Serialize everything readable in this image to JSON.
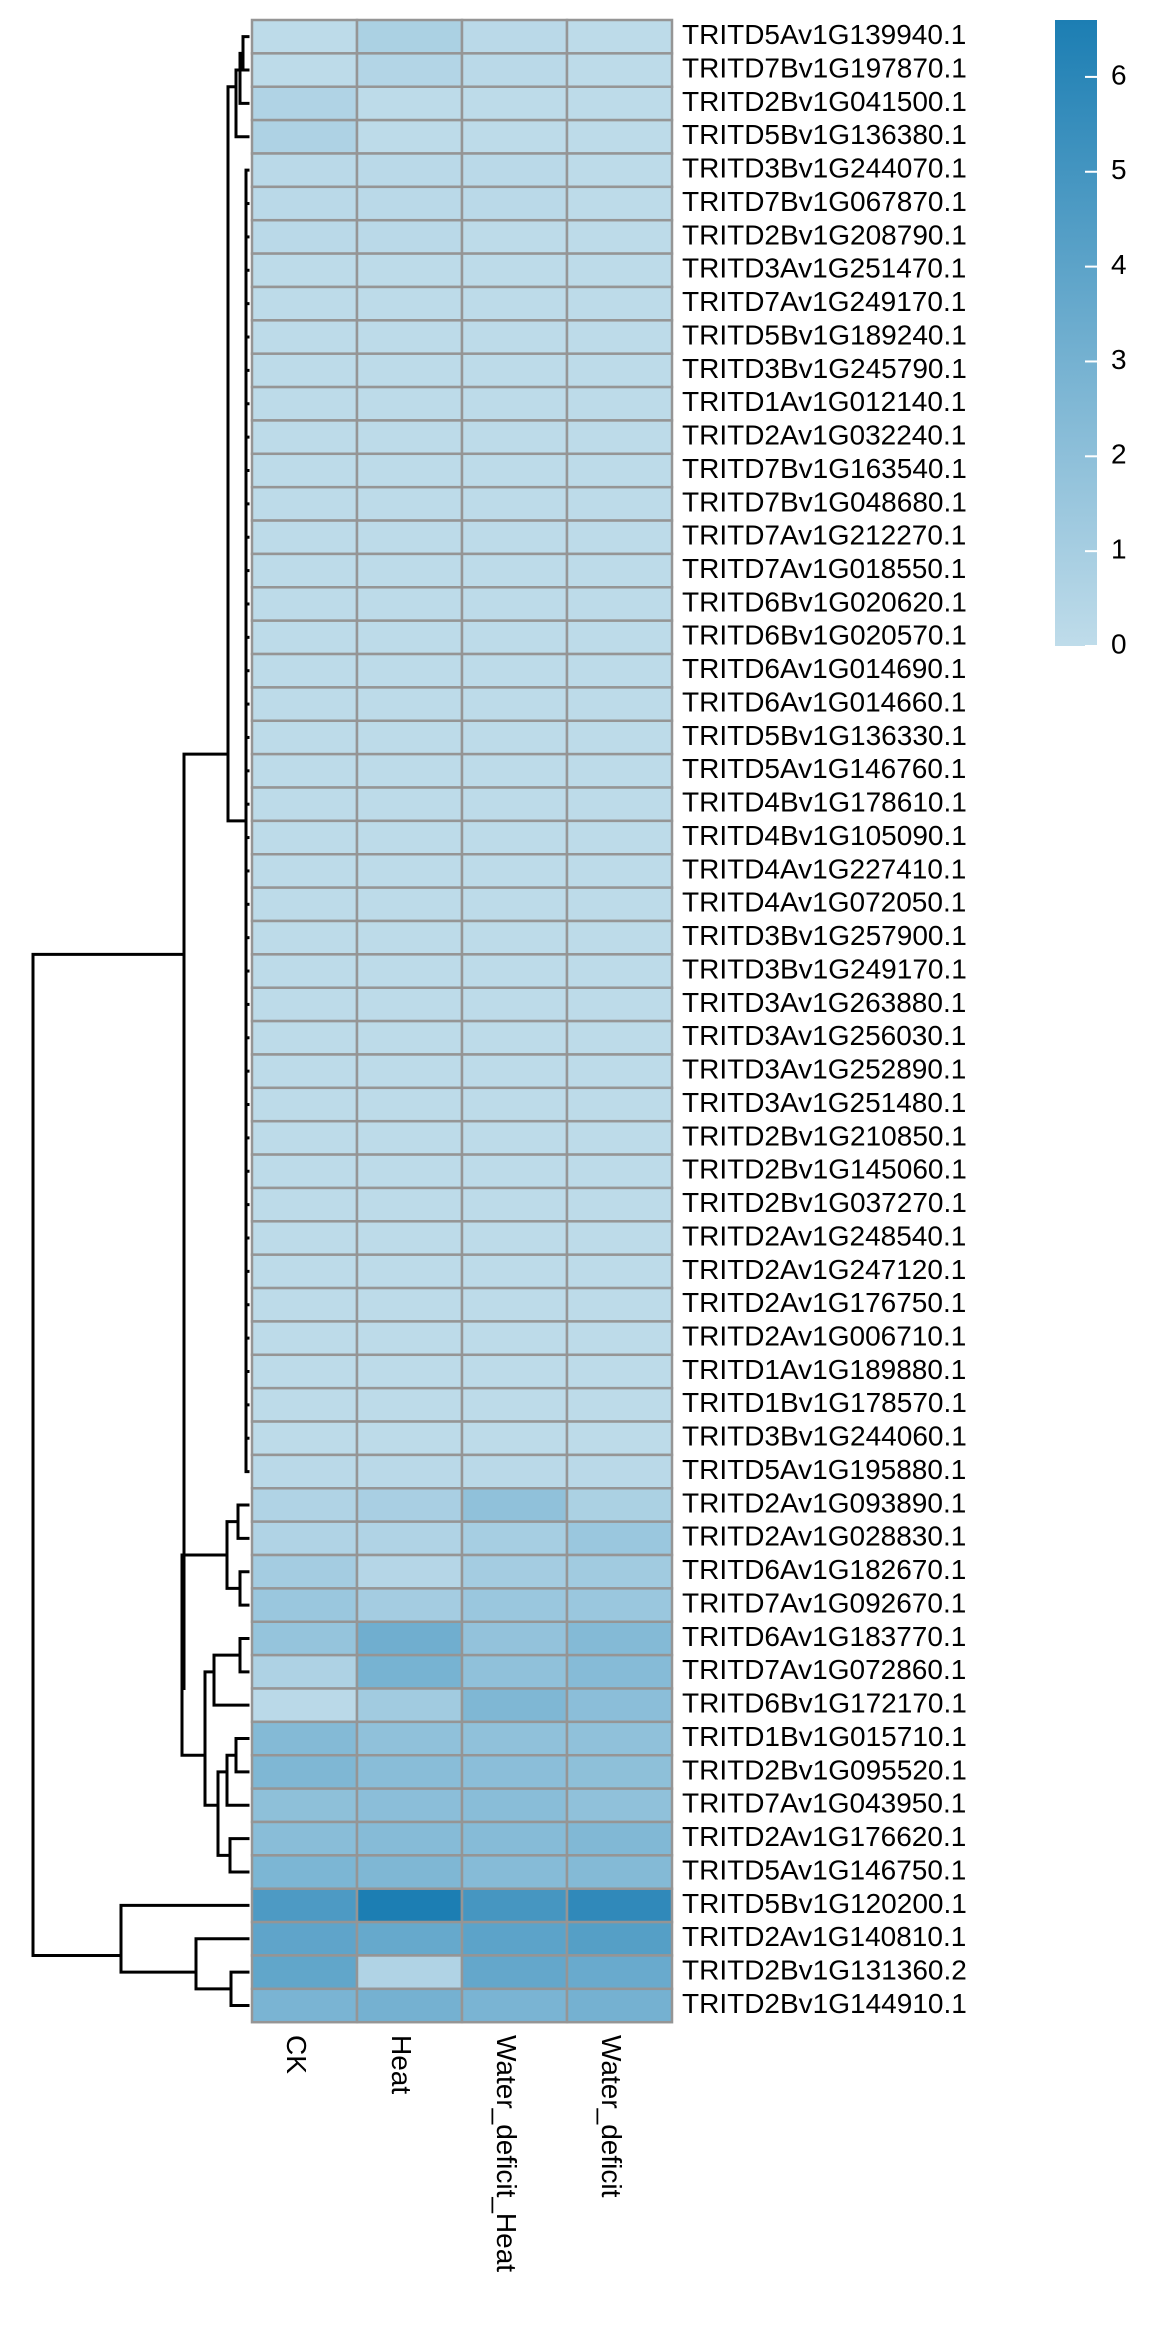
{
  "chart_data": {
    "type": "heatmap",
    "title": "",
    "columns": [
      "CK",
      "Heat",
      "Water_deficit_Heat",
      "Water_deficit"
    ],
    "rows": [
      "TRITD5Av1G139940.1",
      "TRITD7Bv1G197870.1",
      "TRITD2Bv1G041500.1",
      "TRITD5Bv1G136380.1",
      "TRITD3Bv1G244070.1",
      "TRITD7Bv1G067870.1",
      "TRITD2Bv1G208790.1",
      "TRITD3Av1G251470.1",
      "TRITD7Av1G249170.1",
      "TRITD5Bv1G189240.1",
      "TRITD3Bv1G245790.1",
      "TRITD1Av1G012140.1",
      "TRITD2Av1G032240.1",
      "TRITD7Bv1G163540.1",
      "TRITD7Bv1G048680.1",
      "TRITD7Av1G212270.1",
      "TRITD7Av1G018550.1",
      "TRITD6Bv1G020620.1",
      "TRITD6Bv1G020570.1",
      "TRITD6Av1G014690.1",
      "TRITD6Av1G014660.1",
      "TRITD5Bv1G136330.1",
      "TRITD5Av1G146760.1",
      "TRITD4Bv1G178610.1",
      "TRITD4Bv1G105090.1",
      "TRITD4Av1G227410.1",
      "TRITD4Av1G072050.1",
      "TRITD3Bv1G257900.1",
      "TRITD3Bv1G249170.1",
      "TRITD3Av1G263880.1",
      "TRITD3Av1G256030.1",
      "TRITD3Av1G252890.1",
      "TRITD3Av1G251480.1",
      "TRITD2Bv1G210850.1",
      "TRITD2Bv1G145060.1",
      "TRITD2Bv1G037270.1",
      "TRITD2Av1G248540.1",
      "TRITD2Av1G247120.1",
      "TRITD2Av1G176750.1",
      "TRITD2Av1G006710.1",
      "TRITD1Av1G189880.1",
      "TRITD1Bv1G178570.1",
      "TRITD3Bv1G244060.1",
      "TRITD5Av1G195880.1",
      "TRITD2Av1G093890.1",
      "TRITD2Av1G028830.1",
      "TRITD6Av1G182670.1",
      "TRITD7Av1G092670.1",
      "TRITD6Av1G183770.1",
      "TRITD7Av1G072860.1",
      "TRITD6Bv1G172170.1",
      "TRITD1Bv1G015710.1",
      "TRITD2Bv1G095520.1",
      "TRITD7Av1G043950.1",
      "TRITD2Av1G176620.1",
      "TRITD5Av1G146750.1",
      "TRITD5Bv1G120200.1",
      "TRITD2Av1G140810.1",
      "TRITD2Bv1G131360.2",
      "TRITD2Bv1G144910.1"
    ],
    "values": [
      [
        0.1,
        0.8,
        0.2,
        0.1
      ],
      [
        0.1,
        0.5,
        0.2,
        0.1
      ],
      [
        0.6,
        0.1,
        0.1,
        0.1
      ],
      [
        0.7,
        0.1,
        0.1,
        0.1
      ],
      [
        0.2,
        0.2,
        0.2,
        0.1
      ],
      [
        0.2,
        0.2,
        0.2,
        0.1
      ],
      [
        0.2,
        0.2,
        0.1,
        0.1
      ],
      [
        0.1,
        0.1,
        0.1,
        0.1
      ],
      [
        0.1,
        0.1,
        0.1,
        0.1
      ],
      [
        0.1,
        0.1,
        0.1,
        0.1
      ],
      [
        0.1,
        0.1,
        0.1,
        0.1
      ],
      [
        0.1,
        0.1,
        0.1,
        0.1
      ],
      [
        0.1,
        0.1,
        0.1,
        0.1
      ],
      [
        0.1,
        0.1,
        0.1,
        0.1
      ],
      [
        0.1,
        0.1,
        0.1,
        0.1
      ],
      [
        0.1,
        0.1,
        0.1,
        0.1
      ],
      [
        0.1,
        0.1,
        0.1,
        0.1
      ],
      [
        0.1,
        0.1,
        0.1,
        0.1
      ],
      [
        0.1,
        0.1,
        0.1,
        0.1
      ],
      [
        0.1,
        0.1,
        0.1,
        0.1
      ],
      [
        0.1,
        0.1,
        0.1,
        0.1
      ],
      [
        0.1,
        0.1,
        0.1,
        0.1
      ],
      [
        0.1,
        0.1,
        0.1,
        0.1
      ],
      [
        0.1,
        0.1,
        0.1,
        0.1
      ],
      [
        0.1,
        0.1,
        0.1,
        0.1
      ],
      [
        0.1,
        0.1,
        0.1,
        0.1
      ],
      [
        0.1,
        0.1,
        0.1,
        0.1
      ],
      [
        0.1,
        0.1,
        0.1,
        0.1
      ],
      [
        0.1,
        0.1,
        0.1,
        0.1
      ],
      [
        0.1,
        0.1,
        0.1,
        0.1
      ],
      [
        0.1,
        0.1,
        0.1,
        0.1
      ],
      [
        0.1,
        0.1,
        0.1,
        0.1
      ],
      [
        0.1,
        0.1,
        0.1,
        0.1
      ],
      [
        0.1,
        0.1,
        0.1,
        0.1
      ],
      [
        0.1,
        0.1,
        0.1,
        0.1
      ],
      [
        0.1,
        0.1,
        0.1,
        0.1
      ],
      [
        0.1,
        0.1,
        0.1,
        0.1
      ],
      [
        0.1,
        0.1,
        0.1,
        0.1
      ],
      [
        0.1,
        0.1,
        0.1,
        0.1
      ],
      [
        0.1,
        0.1,
        0.1,
        0.1
      ],
      [
        0.1,
        0.1,
        0.1,
        0.1
      ],
      [
        0.1,
        0.1,
        0.1,
        0.1
      ],
      [
        0.1,
        0.1,
        0.1,
        0.1
      ],
      [
        0.2,
        0.2,
        0.2,
        0.2
      ],
      [
        0.6,
        0.9,
        1.9,
        0.8
      ],
      [
        0.6,
        0.6,
        1.0,
        1.5
      ],
      [
        1.1,
        0.4,
        1.1,
        1.2
      ],
      [
        1.5,
        1.1,
        1.5,
        1.5
      ],
      [
        1.7,
        3.2,
        1.8,
        2.4
      ],
      [
        0.7,
        2.9,
        1.9,
        2.3
      ],
      [
        0.2,
        1.2,
        2.6,
        2.1
      ],
      [
        2.4,
        1.9,
        1.9,
        1.9
      ],
      [
        2.6,
        2.2,
        2.1,
        2.0
      ],
      [
        2.0,
        2.1,
        2.2,
        1.9
      ],
      [
        2.2,
        2.3,
        2.3,
        2.5
      ],
      [
        2.7,
        2.6,
        2.3,
        2.4
      ],
      [
        4.6,
        6.6,
        4.9,
        5.8
      ],
      [
        3.9,
        3.6,
        4.0,
        4.3
      ],
      [
        3.8,
        0.6,
        3.7,
        3.5
      ],
      [
        2.8,
        3.0,
        2.8,
        3.0
      ]
    ],
    "legend": {
      "type": "colorbar",
      "ticks": [
        "0",
        "1",
        "2",
        "3",
        "4",
        "5",
        "6"
      ],
      "min": 0,
      "max": 6.6,
      "colors": {
        "low": "#bfdcea",
        "high": "#1c7eb3"
      }
    },
    "cell_border_color": "#959595",
    "dendrogram": "rows"
  }
}
